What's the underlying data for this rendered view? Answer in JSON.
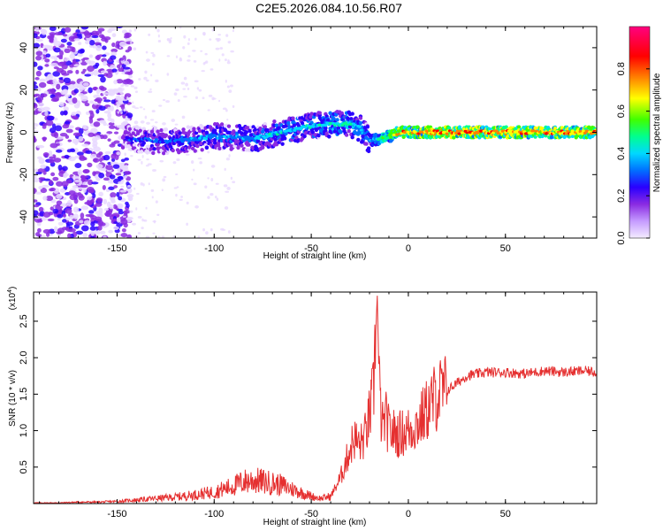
{
  "title": "C2E5.2026.084.10.56.R07",
  "chart_data": [
    {
      "type": "heatmap",
      "xlabel": "Height of straight line (km)",
      "ylabel": "Frequency (Hz)",
      "xlim": [
        -193,
        97
      ],
      "ylim": [
        -50,
        50
      ],
      "xticks": [
        -150,
        -100,
        -50,
        0,
        50
      ],
      "xtick_labels": [
        "-150",
        "-100",
        "-50",
        "0",
        "50"
      ],
      "yticks": [
        -40,
        -20,
        0,
        20,
        40
      ],
      "ytick_labels": [
        "-40",
        "-20",
        "0",
        "20",
        "40"
      ],
      "colorbar": {
        "label": "Normalized spectral amplitude",
        "range": [
          0,
          1
        ],
        "ticks": [
          0,
          0.2,
          0.4,
          0.6,
          0.8
        ],
        "tick_labels": [
          "0.0",
          "0.2",
          "0.4",
          "0.6",
          "0.8"
        ],
        "colors": [
          "#e8d8ff",
          "#8a2be2",
          "#2a00ff",
          "#0070ff",
          "#00d8ff",
          "#00ff90",
          "#40ff00",
          "#ffff00",
          "#ff8000",
          "#ff0000",
          "#ff0080"
        ]
      },
      "ridge": {
        "x": [
          -145,
          -130,
          -120,
          -110,
          -100,
          -90,
          -80,
          -70,
          -60,
          -50,
          -40,
          -30,
          -25,
          -20,
          -15,
          -10,
          -5,
          0,
          10,
          30,
          50,
          70,
          97
        ],
        "y": [
          -3,
          -4,
          -4,
          -3,
          -2,
          -2,
          -3,
          -1,
          1,
          3,
          4,
          4,
          2,
          -4,
          -3,
          -2,
          0,
          0,
          0,
          0,
          0,
          0,
          0
        ],
        "amplitude": [
          0.3,
          0.35,
          0.38,
          0.4,
          0.42,
          0.42,
          0.45,
          0.5,
          0.5,
          0.5,
          0.55,
          0.55,
          0.5,
          0.45,
          0.55,
          0.7,
          0.85,
          0.9,
          0.95,
          0.95,
          0.95,
          0.9,
          0.9
        ]
      }
    },
    {
      "type": "line",
      "xlabel": "Height of straight line (km)",
      "ylabel": "SNR (10 * v/v)",
      "yscale_label": "(x10",
      "yscale_exp": "4",
      "yscale_close": ")",
      "xlim": [
        -193,
        97
      ],
      "ylim": [
        0,
        2.9
      ],
      "xticks": [
        -150,
        -100,
        -50,
        0,
        50
      ],
      "xtick_labels": [
        "-150",
        "-100",
        "-50",
        "0",
        "50"
      ],
      "yticks": [
        0.5,
        1.0,
        1.5,
        2.0,
        2.5
      ],
      "ytick_labels": [
        "0.5",
        "1.0",
        "1.5",
        "2.0",
        "2.5"
      ],
      "color": "#e53030",
      "series": [
        {
          "name": "SNR",
          "x": [
            -193,
            -180,
            -170,
            -160,
            -150,
            -140,
            -130,
            -120,
            -110,
            -100,
            -95,
            -90,
            -85,
            -80,
            -75,
            -70,
            -65,
            -60,
            -55,
            -50,
            -45,
            -40,
            -35,
            -30,
            -28,
            -25,
            -22,
            -20,
            -18,
            -17,
            -16,
            -15,
            -14,
            -13,
            -12,
            -10,
            -5,
            0,
            5,
            10,
            15,
            20,
            25,
            30,
            40,
            50,
            60,
            70,
            80,
            90,
            97
          ],
          "y": [
            0.01,
            0.01,
            0.02,
            0.02,
            0.03,
            0.05,
            0.07,
            0.09,
            0.12,
            0.16,
            0.2,
            0.24,
            0.3,
            0.32,
            0.3,
            0.28,
            0.25,
            0.2,
            0.15,
            0.1,
            0.07,
            0.1,
            0.35,
            0.75,
            0.9,
            0.8,
            0.95,
            1.2,
            1.5,
            2.2,
            2.85,
            1.6,
            1.2,
            1.0,
            1.2,
            1.0,
            0.95,
            1.0,
            1.1,
            1.3,
            1.5,
            1.55,
            1.65,
            1.75,
            1.8,
            1.8,
            1.78,
            1.82,
            1.8,
            1.82,
            1.8
          ]
        }
      ]
    }
  ]
}
